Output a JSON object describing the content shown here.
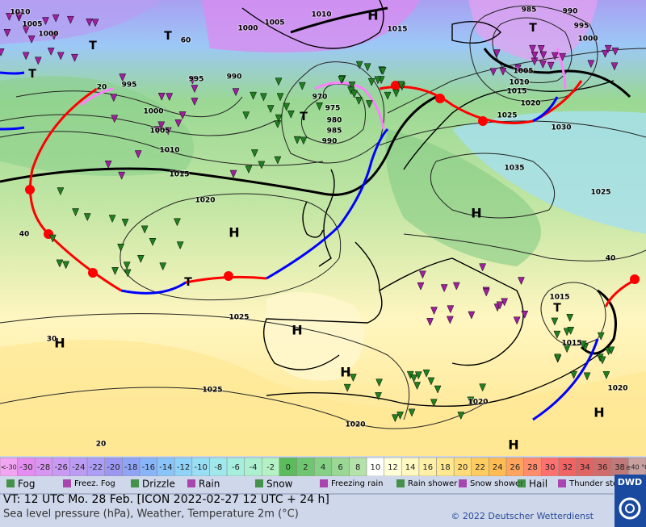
{
  "map": {
    "labels": [
      "1010",
      "1005",
      "1000",
      "1005",
      "1010",
      "H",
      "1000",
      "1015",
      "985",
      "990",
      "995",
      "1000",
      "1005",
      "1010",
      "1015",
      "1020",
      "1025",
      "1030",
      "995",
      "995",
      "990",
      "1000",
      "1005",
      "1010",
      "1015",
      "1020",
      "970",
      "975",
      "980",
      "985",
      "990",
      "1035",
      "1025",
      "H",
      "H",
      "1025",
      "1025",
      "H",
      "H",
      "H",
      "1020",
      "1020",
      "H",
      "H",
      "1015",
      "1015",
      "1020",
      "T",
      "T",
      "T",
      "T",
      "T",
      "T",
      "T",
      "40",
      "30",
      "20",
      "40",
      "20",
      "60"
    ]
  },
  "temperature_scale": {
    "cells": [
      {
        "label": "<-30",
        "color": "#f2a6f2"
      },
      {
        "value": -30,
        "color": "#e48cf0"
      },
      {
        "value": -28,
        "color": "#d696f2"
      },
      {
        "value": -26,
        "color": "#c89af4"
      },
      {
        "value": -24,
        "color": "#ba9cf4"
      },
      {
        "value": -22,
        "color": "#ac9ef4"
      },
      {
        "value": -20,
        "color": "#9c98f2"
      },
      {
        "value": -18,
        "color": "#90a4f6"
      },
      {
        "value": -16,
        "color": "#88b4f8"
      },
      {
        "value": -14,
        "color": "#88c4f8"
      },
      {
        "value": -12,
        "color": "#90d2f8"
      },
      {
        "value": -10,
        "color": "#98def4"
      },
      {
        "value": -8,
        "color": "#a0e8ec"
      },
      {
        "value": -6,
        "color": "#a6eede"
      },
      {
        "value": -4,
        "color": "#acf0d0"
      },
      {
        "value": -2,
        "color": "#b4f2c4"
      },
      {
        "value": 0,
        "color": "#5cbc5c"
      },
      {
        "value": 2,
        "color": "#70c670"
      },
      {
        "value": 4,
        "color": "#84d084"
      },
      {
        "value": 6,
        "color": "#9ad894"
      },
      {
        "value": 8,
        "color": "#b4e2a8"
      },
      {
        "value": 10,
        "color": "#ffffff"
      },
      {
        "value": 12,
        "color": "#ffffd8"
      },
      {
        "value": 14,
        "color": "#fff8c0"
      },
      {
        "value": 16,
        "color": "#fff0a8"
      },
      {
        "value": 18,
        "color": "#ffe890"
      },
      {
        "value": 20,
        "color": "#ffdc78"
      },
      {
        "value": 22,
        "color": "#ffcc60"
      },
      {
        "value": 24,
        "color": "#ffbc54"
      },
      {
        "value": 26,
        "color": "#ffa45c"
      },
      {
        "value": 28,
        "color": "#ff8c6c"
      },
      {
        "value": 30,
        "color": "#ff7070"
      },
      {
        "value": 32,
        "color": "#f06464"
      },
      {
        "value": 34,
        "color": "#e06464"
      },
      {
        "value": 36,
        "color": "#d06c6c"
      },
      {
        "value": 38,
        "color": "#c07878"
      },
      {
        "label": "≥40 °C",
        "color": "#c8a0a0"
      }
    ]
  },
  "weather_legend": [
    "Fog",
    "Freez. Fog",
    "Drizzle",
    "Rain",
    "Snow",
    "Freezing rain",
    "Rain shower",
    "Snow shower",
    "Hail",
    "Thunder storm"
  ],
  "footer": {
    "valid_time": "VT: 12 UTC Mo.  28 Feb. [ICON 2022-02-27  12 UTC + 24 h]",
    "description": "Sea level pressure (hPa), Weather, Temperature 2m (°C)",
    "copyright": "© 2022 Deutscher Wetterdienst",
    "logo": "DWD"
  }
}
